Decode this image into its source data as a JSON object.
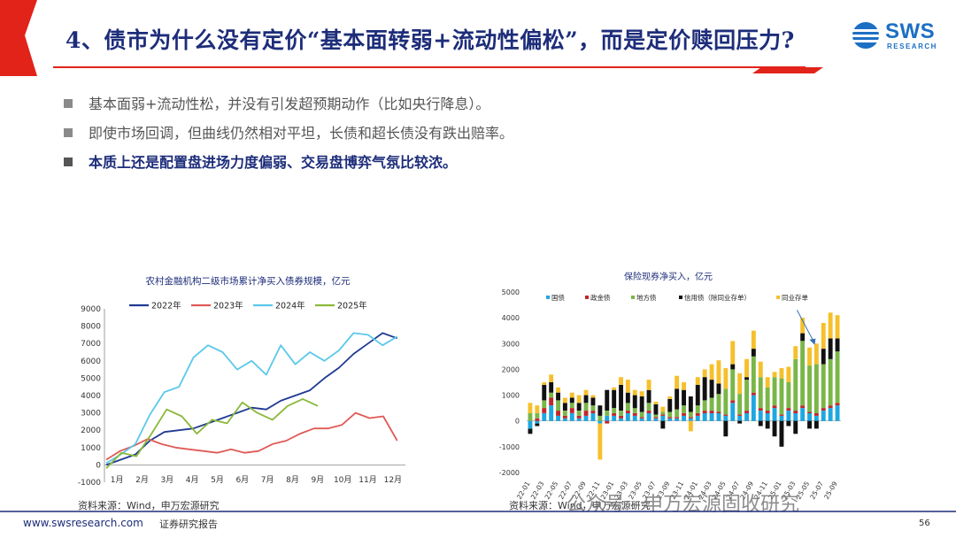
{
  "header": {
    "title": "4、债市为什么没有定价“基本面转弱+流动性偏松”，而是定价赎回压力?",
    "logo_name": "SWS",
    "logo_sub": "RESEARCH",
    "logo_icon": "sws-globe-icon",
    "accent_color": "#e2231a",
    "title_color": "#1d2d7a"
  },
  "bullets": [
    {
      "text": "基本面弱+流动性松，并没有引发超预期动作（比如央行降息）。"
    },
    {
      "text": "即使市场回调，但曲线仍然相对平坦，长债和超长债没有跌出赔率。"
    },
    {
      "text": "本质上还是配置盘进场力度偏弱、交易盘博弈气氛比较浓。"
    }
  ],
  "footer": {
    "source_left": "资料来源：Wind，申万宏源研究",
    "source_right": "资料来源：Wind，申万宏源研究",
    "url": "www.swsresearch.com",
    "report": "证券研究报告",
    "page": "56",
    "watermark": "公众号 · 申万宏源固收研究"
  },
  "chart_data": [
    {
      "type": "line",
      "title": "农村金融机构二级市场累计净买入债券规模，亿元",
      "x_ticks": [
        "1月",
        "2月",
        "3月",
        "4月",
        "5月",
        "6月",
        "7月",
        "8月",
        "9月",
        "10月",
        "11月",
        "12月"
      ],
      "y_ticks": [
        "9000",
        "8000",
        "7000",
        "6000",
        "5000",
        "4000",
        "3000",
        "2000",
        "1000",
        "0",
        "-1000"
      ],
      "ylim": [
        -1000,
        9000
      ],
      "legend_position": "top",
      "series": [
        {
          "name": "2022年",
          "color": "#1f3a93",
          "values": [
            0,
            300,
            600,
            1400,
            1900,
            2000,
            2100,
            2400,
            2700,
            3000,
            3300,
            3200,
            3700,
            4000,
            4300,
            5000,
            5600,
            6400,
            7000,
            7600,
            7300
          ]
        },
        {
          "name": "2023年",
          "color": "#e05a57",
          "values": [
            300,
            800,
            1100,
            1500,
            1200,
            1000,
            900,
            800,
            700,
            900,
            700,
            800,
            1200,
            1400,
            1800,
            2100,
            2100,
            2300,
            3000,
            2700,
            2800,
            1400
          ]
        },
        {
          "name": "2024年",
          "color": "#5ac8ea",
          "values": [
            100,
            600,
            1200,
            2900,
            4200,
            4500,
            6200,
            6900,
            6500,
            5500,
            6000,
            5200,
            6900,
            5800,
            6500,
            6000,
            6600,
            7600,
            7500,
            6900,
            7400
          ]
        },
        {
          "name": "2025年",
          "color": "#8ab83a",
          "values": [
            -200,
            700,
            500,
            1800,
            3200,
            2800,
            1800,
            2600,
            2400,
            3600,
            3000,
            2600,
            3400,
            3800,
            3400
          ]
        }
      ]
    },
    {
      "type": "bar",
      "title": "保险现券净买入，亿元",
      "y_ticks": [
        "5000",
        "4000",
        "3000",
        "2000",
        "1000",
        "0",
        "-1000",
        "-2000"
      ],
      "ylim": [
        -2000,
        5000
      ],
      "legend_position": "top",
      "series": [
        {
          "name": "国债",
          "color": "#1fa7e0"
        },
        {
          "name": "政金债",
          "color": "#c0272d"
        },
        {
          "name": "地方债",
          "color": "#7ab648"
        },
        {
          "name": "信用债（除同业存单）",
          "color": "#111111"
        },
        {
          "name": "同业存单",
          "color": "#f6c02c"
        }
      ],
      "categories": [
        "22-01",
        "22-02",
        "22-03",
        "22-04",
        "22-05",
        "22-06",
        "22-07",
        "22-08",
        "22-09",
        "22-10",
        "22-11",
        "22-12",
        "23-01",
        "23-02",
        "23-03",
        "23-04",
        "23-05",
        "23-06",
        "23-07",
        "23-08",
        "23-09",
        "23-10",
        "23-11",
        "23-12",
        "24-01",
        "24-02",
        "24-03",
        "24-04",
        "24-05",
        "24-06",
        "24-07",
        "24-08",
        "24-09",
        "24-10",
        "24-11",
        "24-12",
        "25-01",
        "25-02",
        "25-03",
        "25-04",
        "25-05",
        "25-06",
        "25-07",
        "25-08",
        "25-09"
      ],
      "x_ticks": [
        "22-01",
        "22-03",
        "22-05",
        "22-07",
        "22-09",
        "22-11",
        "23-01",
        "23-03",
        "23-05",
        "23-07",
        "23-09",
        "23-11",
        "24-01",
        "24-03",
        "24-05",
        "24-07",
        "24-09",
        "24-11",
        "25-01",
        "25-03",
        "25-05",
        "25-07",
        "25-09"
      ],
      "stacks": [
        [
          -300,
          0,
          300,
          -200,
          400
        ],
        [
          -100,
          100,
          200,
          -100,
          300
        ],
        [
          300,
          200,
          300,
          600,
          100
        ],
        [
          600,
          300,
          200,
          400,
          300
        ],
        [
          200,
          200,
          400,
          300,
          200
        ],
        [
          100,
          100,
          200,
          300,
          200
        ],
        [
          300,
          200,
          200,
          200,
          200
        ],
        [
          100,
          100,
          200,
          300,
          300
        ],
        [
          200,
          200,
          300,
          300,
          200
        ],
        [
          300,
          100,
          200,
          300,
          100
        ],
        [
          -100,
          0,
          200,
          400,
          -1400
        ],
        [
          200,
          -100,
          200,
          800,
          0
        ],
        [
          200,
          100,
          200,
          700,
          100
        ],
        [
          100,
          100,
          200,
          1000,
          300
        ],
        [
          300,
          100,
          300,
          400,
          500
        ],
        [
          200,
          100,
          200,
          500,
          200
        ],
        [
          100,
          50,
          200,
          600,
          200
        ],
        [
          300,
          100,
          300,
          500,
          400
        ],
        [
          100,
          50,
          100,
          400,
          100
        ],
        [
          200,
          50,
          100,
          -300,
          200
        ],
        [
          100,
          50,
          200,
          500,
          100
        ],
        [
          100,
          50,
          300,
          800,
          500
        ],
        [
          200,
          100,
          300,
          600,
          300
        ],
        [
          100,
          50,
          200,
          600,
          -400
        ],
        [
          200,
          100,
          300,
          800,
          300
        ],
        [
          300,
          100,
          400,
          900,
          300
        ],
        [
          300,
          100,
          500,
          700,
          600
        ],
        [
          300,
          50,
          700,
          400,
          900
        ],
        [
          200,
          50,
          1000,
          -600,
          800
        ],
        [
          700,
          100,
          1200,
          200,
          900
        ],
        [
          200,
          50,
          800,
          -100,
          800
        ],
        [
          300,
          100,
          1200,
          100,
          700
        ],
        [
          1000,
          100,
          1400,
          300,
          700
        ],
        [
          400,
          100,
          1200,
          -200,
          600
        ],
        [
          300,
          100,
          900,
          -300,
          400
        ],
        [
          500,
          100,
          1100,
          -600,
          200
        ],
        [
          200,
          50,
          1400,
          -1000,
          400
        ],
        [
          400,
          100,
          1000,
          -200,
          600
        ],
        [
          300,
          100,
          2000,
          -500,
          500
        ],
        [
          500,
          100,
          2500,
          300,
          600
        ],
        [
          300,
          50,
          1800,
          -300,
          700
        ],
        [
          200,
          100,
          1900,
          -300,
          800
        ],
        [
          400,
          100,
          1700,
          600,
          1000
        ],
        [
          500,
          100,
          1800,
          800,
          1000
        ],
        [
          600,
          100,
          2000,
          500,
          900
        ]
      ]
    }
  ]
}
